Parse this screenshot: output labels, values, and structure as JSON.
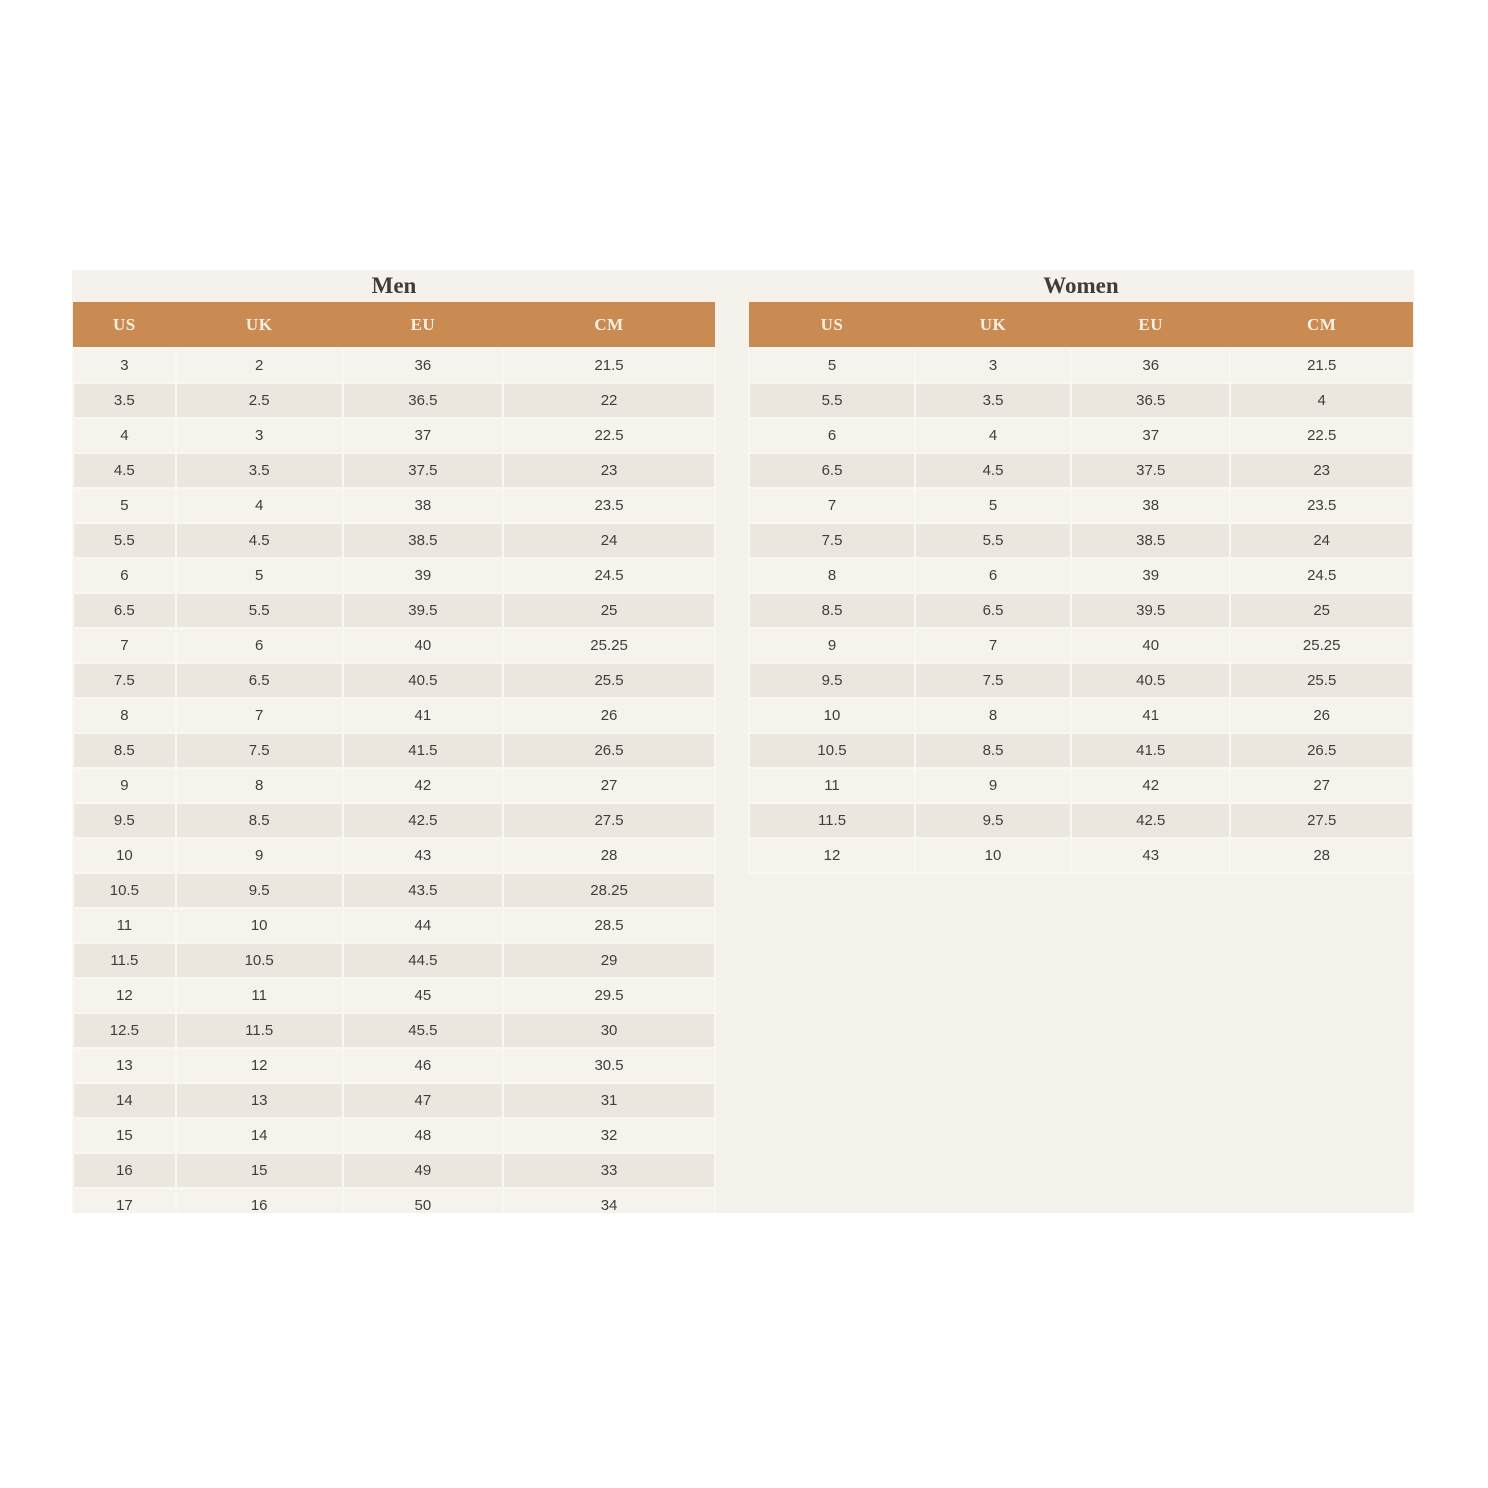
{
  "page": {
    "background": "#FFFFFF"
  },
  "colors": {
    "header_background": "#C98B52",
    "header_text": "#F8F1E4",
    "row_light": "#F5F3EC",
    "row_dark": "#ECE7DE",
    "panel_background": "#F4F2EB",
    "cell_text": "#3E3E3D",
    "title_text": "#413D35"
  },
  "tables": [
    {
      "title": "Men",
      "headers": [
        "US",
        "UK",
        "EU",
        "CM"
      ],
      "rows": [
        [
          "3",
          "2",
          "36",
          "21.5"
        ],
        [
          "3.5",
          "2.5",
          "36.5",
          "22"
        ],
        [
          "4",
          "3",
          "37",
          "22.5"
        ],
        [
          "4.5",
          "3.5",
          "37.5",
          "23"
        ],
        [
          "5",
          "4",
          "38",
          "23.5"
        ],
        [
          "5.5",
          "4.5",
          "38.5",
          "24"
        ],
        [
          "6",
          "5",
          "39",
          "24.5"
        ],
        [
          "6.5",
          "5.5",
          "39.5",
          "25"
        ],
        [
          "7",
          "6",
          "40",
          "25.25"
        ],
        [
          "7.5",
          "6.5",
          "40.5",
          "25.5"
        ],
        [
          "8",
          "7",
          "41",
          "26"
        ],
        [
          "8.5",
          "7.5",
          "41.5",
          "26.5"
        ],
        [
          "9",
          "8",
          "42",
          "27"
        ],
        [
          "9.5",
          "8.5",
          "42.5",
          "27.5"
        ],
        [
          "10",
          "9",
          "43",
          "28"
        ],
        [
          "10.5",
          "9.5",
          "43.5",
          "28.25"
        ],
        [
          "11",
          "10",
          "44",
          "28.5"
        ],
        [
          "11.5",
          "10.5",
          "44.5",
          "29"
        ],
        [
          "12",
          "11",
          "45",
          "29.5"
        ],
        [
          "12.5",
          "11.5",
          "45.5",
          "30"
        ],
        [
          "13",
          "12",
          "46",
          "30.5"
        ],
        [
          "14",
          "13",
          "47",
          "31"
        ],
        [
          "15",
          "14",
          "48",
          "32"
        ],
        [
          "16",
          "15",
          "49",
          "33"
        ],
        [
          "17",
          "16",
          "50",
          "34"
        ]
      ]
    },
    {
      "title": "Women",
      "headers": [
        "US",
        "UK",
        "EU",
        "CM"
      ],
      "rows": [
        [
          "5",
          "3",
          "36",
          "21.5"
        ],
        [
          "5.5",
          "3.5",
          "36.5",
          "4"
        ],
        [
          "6",
          "4",
          "37",
          "22.5"
        ],
        [
          "6.5",
          "4.5",
          "37.5",
          "23"
        ],
        [
          "7",
          "5",
          "38",
          "23.5"
        ],
        [
          "7.5",
          "5.5",
          "38.5",
          "24"
        ],
        [
          "8",
          "6",
          "39",
          "24.5"
        ],
        [
          "8.5",
          "6.5",
          "39.5",
          "25"
        ],
        [
          "9",
          "7",
          "40",
          "25.25"
        ],
        [
          "9.5",
          "7.5",
          "40.5",
          "25.5"
        ],
        [
          "10",
          "8",
          "41",
          "26"
        ],
        [
          "10.5",
          "8.5",
          "41.5",
          "26.5"
        ],
        [
          "11",
          "9",
          "42",
          "27"
        ],
        [
          "11.5",
          "9.5",
          "42.5",
          "27.5"
        ],
        [
          "12",
          "10",
          "43",
          "28"
        ]
      ]
    }
  ]
}
